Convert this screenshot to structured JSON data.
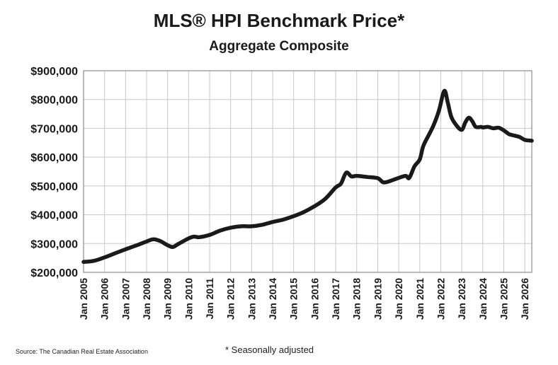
{
  "header": {
    "title": "MLS® HPI Benchmark Price*",
    "subtitle": "Aggregate Composite"
  },
  "footer": {
    "source": "Source: The Canadian Real Estate Association",
    "footnote": "* Seasonally adjusted"
  },
  "colors": {
    "line": "#1a1a1a",
    "grid": "#c8c8c8",
    "axis": "#8c8c8c",
    "background": "#ffffff"
  },
  "chart_data": {
    "type": "line",
    "title": "MLS® HPI Benchmark Price*",
    "subtitle": "Aggregate Composite",
    "xlabel": "",
    "ylabel": "",
    "x_range": [
      "2005-01",
      "2026-05"
    ],
    "ylim": [
      200000,
      900000
    ],
    "y_ticks": [
      200000,
      300000,
      400000,
      500000,
      600000,
      700000,
      800000,
      900000
    ],
    "y_tick_labels": [
      "$200,000",
      "$300,000",
      "$400,000",
      "$500,000",
      "$600,000",
      "$700,000",
      "$800,000",
      "$900,000"
    ],
    "x_tick_labels": [
      "Jan 2005",
      "Jan 2006",
      "Jan 2007",
      "Jan 2008",
      "Jan 2009",
      "Jan 2010",
      "Jan 2011",
      "Jan 2012",
      "Jan 2013",
      "Jan 2014",
      "Jan 2015",
      "Jan 2016",
      "Jan 2017",
      "Jan 2018",
      "Jan 2019",
      "Jan 2020",
      "Jan 2021",
      "Jan 2022",
      "Jan 2023",
      "Jan 2024",
      "Jan 2025",
      "Jan 2026"
    ],
    "grid": true,
    "legend": "none",
    "series": [
      {
        "x": [
          "2005-01",
          "2005-07",
          "2006-01",
          "2006-07",
          "2007-01",
          "2007-07",
          "2008-01",
          "2008-05",
          "2008-09",
          "2009-01",
          "2009-04",
          "2009-07",
          "2010-01",
          "2010-04",
          "2010-07",
          "2011-01",
          "2011-07",
          "2012-01",
          "2012-07",
          "2013-01",
          "2013-07",
          "2014-01",
          "2014-07",
          "2015-01",
          "2015-07",
          "2016-01",
          "2016-07",
          "2017-01",
          "2017-04",
          "2017-07",
          "2017-10",
          "2018-01",
          "2018-07",
          "2019-01",
          "2019-04",
          "2019-07",
          "2020-01",
          "2020-05",
          "2020-07",
          "2020-10",
          "2021-01",
          "2021-03",
          "2021-06",
          "2021-09",
          "2021-12",
          "2022-03",
          "2022-05",
          "2022-07",
          "2022-10",
          "2023-01",
          "2023-03",
          "2023-05",
          "2023-07",
          "2023-09",
          "2023-12",
          "2024-01",
          "2024-04",
          "2024-07",
          "2024-10",
          "2025-01",
          "2025-04",
          "2025-07",
          "2025-10",
          "2026-01",
          "2026-05"
        ],
        "values": [
          236000,
          240000,
          252000,
          266000,
          280000,
          293000,
          307000,
          315000,
          308000,
          294000,
          288000,
          298000,
          318000,
          324000,
          322000,
          330000,
          345000,
          355000,
          360000,
          360000,
          365000,
          375000,
          383000,
          395000,
          410000,
          430000,
          455000,
          495000,
          508000,
          546000,
          533000,
          535000,
          531000,
          527000,
          513000,
          515000,
          528000,
          535000,
          528000,
          568000,
          592000,
          638000,
          675000,
          712000,
          762000,
          830000,
          790000,
          740000,
          710000,
          695000,
          720000,
          737000,
          725000,
          705000,
          705000,
          703000,
          705000,
          700000,
          702000,
          693000,
          680000,
          675000,
          670000,
          660000,
          657000
        ]
      }
    ]
  }
}
